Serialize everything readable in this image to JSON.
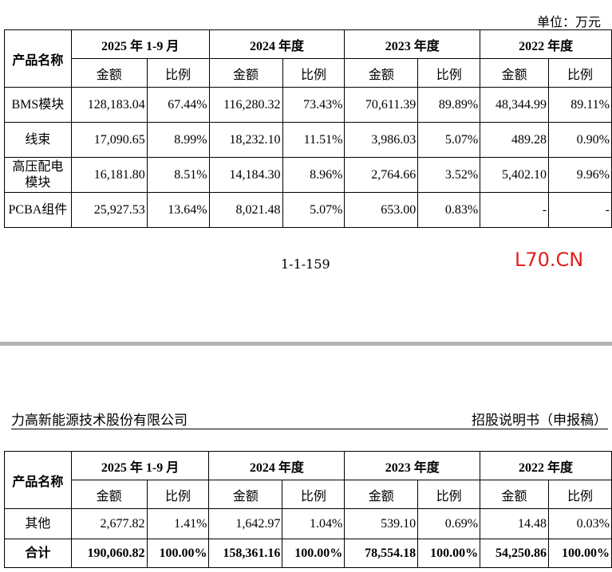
{
  "unit_label": "单位：万元",
  "header": {
    "category_label": "产品名称",
    "periods": [
      "2025 年 1-9 月",
      "2024 年度",
      "2023 年度",
      "2022 年度"
    ],
    "amount_label": "金额",
    "ratio_label": "比例"
  },
  "table_top_rows": [
    {
      "name": "BMS模块",
      "values": [
        "128,183.04",
        "67.44%",
        "116,280.32",
        "73.43%",
        "70,611.39",
        "89.89%",
        "48,344.99",
        "89.11%"
      ]
    },
    {
      "name": "线束",
      "values": [
        "17,090.65",
        "8.99%",
        "18,232.10",
        "11.51%",
        "3,986.03",
        "5.07%",
        "489.28",
        "0.90%"
      ]
    },
    {
      "name": "高压配电模块",
      "values": [
        "16,181.80",
        "8.51%",
        "14,184.30",
        "8.96%",
        "2,764.66",
        "3.52%",
        "5,402.10",
        "9.96%"
      ]
    },
    {
      "name": "PCBA组件",
      "values": [
        "25,927.53",
        "13.64%",
        "8,021.48",
        "5.07%",
        "653.00",
        "0.83%",
        "-",
        "-"
      ]
    }
  ],
  "page_number": "1-1-159",
  "watermark": "L70.CN",
  "company_name": "力高新能源技术股份有限公司",
  "document_type": "招股说明书（申报稿）",
  "table_bottom_rows": [
    {
      "name": "其他",
      "values": [
        "2,677.82",
        "1.41%",
        "1,642.97",
        "1.04%",
        "539.10",
        "0.69%",
        "14.48",
        "0.03%"
      ]
    }
  ],
  "total_row": {
    "name": "合计",
    "values": [
      "190,060.82",
      "100.00%",
      "158,361.16",
      "100.00%",
      "78,554.18",
      "100.00%",
      "54,250.86",
      "100.00%"
    ]
  }
}
